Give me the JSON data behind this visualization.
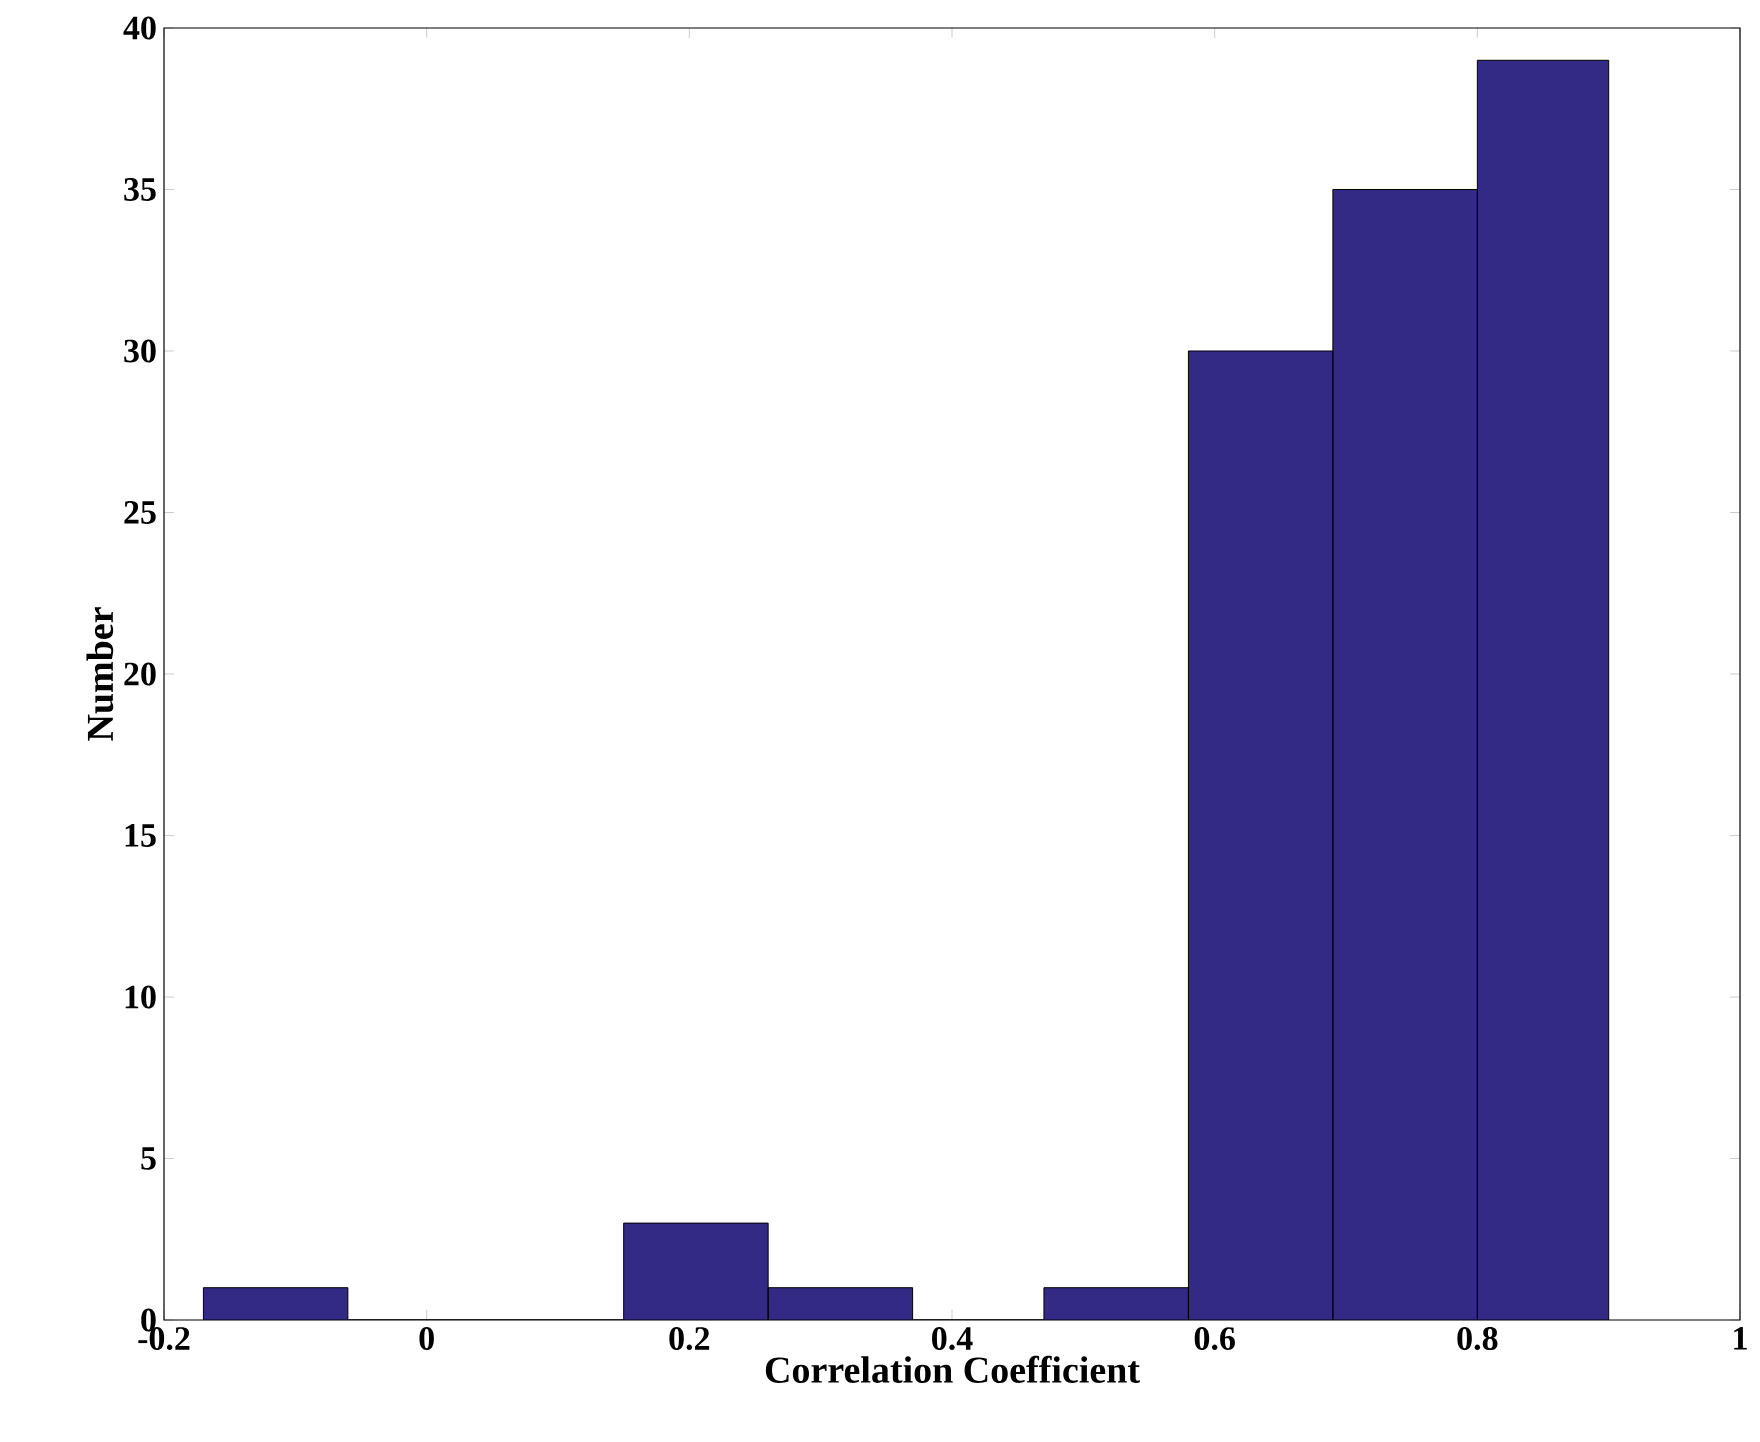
{
  "chart_data": {
    "type": "histogram",
    "xlabel": "Correlation Coefficient",
    "ylabel": "Number",
    "bins": [
      -0.17,
      -0.06,
      0.15,
      0.26,
      0.37,
      0.47,
      0.58,
      0.69,
      0.8,
      0.9
    ],
    "values": [
      1,
      0,
      3,
      1,
      0,
      1,
      30,
      35,
      39
    ],
    "color": "#332a85",
    "xlim": [
      -0.2,
      1
    ],
    "ylim": [
      0,
      40
    ],
    "xticks": [
      -0.2,
      0,
      0.2,
      0.4,
      0.6,
      0.8,
      1
    ],
    "yticks": [
      0,
      5,
      10,
      15,
      20,
      25,
      30,
      35,
      40
    ]
  }
}
